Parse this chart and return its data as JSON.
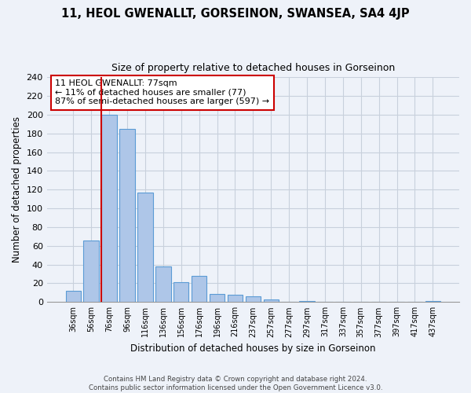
{
  "title": "11, HEOL GWENALLT, GORSEINON, SWANSEA, SA4 4JP",
  "subtitle": "Size of property relative to detached houses in Gorseinon",
  "xlabel": "Distribution of detached houses by size in Gorseinon",
  "ylabel": "Number of detached properties",
  "bar_labels": [
    "36sqm",
    "56sqm",
    "76sqm",
    "96sqm",
    "116sqm",
    "136sqm",
    "156sqm",
    "176sqm",
    "196sqm",
    "216sqm",
    "237sqm",
    "257sqm",
    "277sqm",
    "297sqm",
    "317sqm",
    "337sqm",
    "357sqm",
    "377sqm",
    "397sqm",
    "417sqm",
    "437sqm"
  ],
  "bar_values": [
    12,
    66,
    200,
    185,
    117,
    38,
    21,
    28,
    9,
    8,
    6,
    3,
    0,
    1,
    0,
    0,
    0,
    0,
    0,
    0,
    1
  ],
  "bar_color": "#aec6e8",
  "bar_edge_color": "#5b9bd5",
  "highlight_index": 2,
  "vline_color": "#cc0000",
  "annotation_title": "11 HEOL GWENALLT: 77sqm",
  "annotation_line1": "← 11% of detached houses are smaller (77)",
  "annotation_line2": "87% of semi-detached houses are larger (597) →",
  "annotation_box_edge": "#cc0000",
  "ylim": [
    0,
    240
  ],
  "yticks": [
    0,
    20,
    40,
    60,
    80,
    100,
    120,
    140,
    160,
    180,
    200,
    220,
    240
  ],
  "footer_line1": "Contains HM Land Registry data © Crown copyright and database right 2024.",
  "footer_line2": "Contains public sector information licensed under the Open Government Licence v3.0.",
  "bg_color": "#eef2f9",
  "plot_bg_color": "#eef2f9"
}
